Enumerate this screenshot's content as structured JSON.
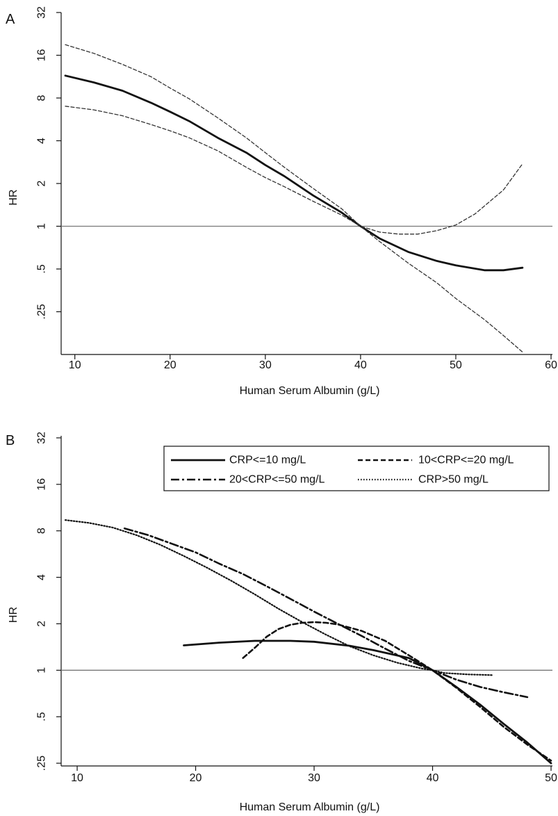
{
  "chart_data": [
    {
      "panel_label": "A",
      "type": "line",
      "xlabel": "Human Serum Albumin (g/L)",
      "ylabel": "HR",
      "xlim": [
        9,
        60
      ],
      "ylim": [
        0.125,
        32
      ],
      "y_scale": "log2",
      "x_ticks": [
        10,
        20,
        30,
        40,
        50,
        60
      ],
      "y_ticks": [
        {
          "value": 32,
          "label": "32"
        },
        {
          "value": 16,
          "label": "16"
        },
        {
          "value": 8,
          "label": "8"
        },
        {
          "value": 4,
          "label": "4"
        },
        {
          "value": 2,
          "label": "2"
        },
        {
          "value": 1,
          "label": "1"
        },
        {
          "value": 0.5,
          "label": ".5"
        },
        {
          "value": 0.25,
          "label": ".25"
        }
      ],
      "reference_line": 1,
      "grid": false,
      "series": [
        {
          "style": "solid",
          "role": "estimate",
          "x": [
            9,
            12,
            15,
            18,
            20,
            22,
            25,
            28,
            30,
            32,
            35,
            38,
            40,
            42,
            45,
            48,
            50,
            53,
            55,
            57
          ],
          "y": [
            11.5,
            10.3,
            9.0,
            7.4,
            6.4,
            5.5,
            4.2,
            3.3,
            2.7,
            2.25,
            1.65,
            1.25,
            1.0,
            0.82,
            0.66,
            0.57,
            0.53,
            0.49,
            0.49,
            0.51
          ]
        },
        {
          "style": "dashed",
          "role": "upper confidence limit",
          "x": [
            9,
            12,
            15,
            18,
            20,
            22,
            25,
            28,
            30,
            32,
            35,
            38,
            40,
            42,
            44,
            46,
            48,
            50,
            52,
            55,
            57
          ],
          "y": [
            19,
            16.5,
            13.8,
            11.3,
            9.4,
            7.9,
            5.8,
            4.2,
            3.3,
            2.6,
            1.85,
            1.33,
            1.0,
            0.91,
            0.88,
            0.88,
            0.93,
            1.02,
            1.22,
            1.8,
            2.75
          ]
        },
        {
          "style": "dashed",
          "role": "lower confidence limit",
          "x": [
            9,
            12,
            15,
            18,
            20,
            22,
            25,
            28,
            30,
            32,
            35,
            38,
            40,
            42,
            45,
            48,
            50,
            53,
            55,
            57
          ],
          "y": [
            7.0,
            6.6,
            6.0,
            5.2,
            4.7,
            4.2,
            3.4,
            2.6,
            2.2,
            1.9,
            1.5,
            1.2,
            1.0,
            0.78,
            0.55,
            0.4,
            0.31,
            0.22,
            0.17,
            0.13
          ]
        }
      ]
    },
    {
      "panel_label": "B",
      "type": "line",
      "xlabel": "Human Serum Albumin (g/L)",
      "ylabel": "HR",
      "xlim": [
        9,
        50
      ],
      "ylim": [
        0.25,
        32
      ],
      "y_scale": "log2",
      "x_ticks": [
        10,
        20,
        30,
        40,
        50
      ],
      "y_ticks": [
        {
          "value": 32,
          "label": "32"
        },
        {
          "value": 16,
          "label": "16"
        },
        {
          "value": 8,
          "label": "8"
        },
        {
          "value": 4,
          "label": "4"
        },
        {
          "value": 2,
          "label": "2"
        },
        {
          "value": 1,
          "label": "1"
        },
        {
          "value": 0.5,
          "label": ".5"
        },
        {
          "value": 0.25,
          "label": ".25"
        }
      ],
      "reference_line": 1,
      "grid": false,
      "legend_position": "top-right",
      "legend_columns": 2,
      "series": [
        {
          "name": "CRP<=10 mg/L",
          "style": "solid",
          "x": [
            19,
            22,
            25,
            28,
            30,
            33,
            35,
            38,
            40,
            42,
            44,
            46,
            48,
            50
          ],
          "y": [
            1.45,
            1.51,
            1.55,
            1.55,
            1.53,
            1.44,
            1.35,
            1.2,
            1.0,
            0.78,
            0.6,
            0.45,
            0.34,
            0.25
          ]
        },
        {
          "name": "10<CRP<=20 mg/L",
          "style": "dashed",
          "x": [
            24,
            25,
            26,
            27,
            28,
            29,
            30,
            31,
            32,
            34,
            36,
            38,
            40,
            42,
            44,
            46,
            48,
            50
          ],
          "y": [
            1.2,
            1.4,
            1.65,
            1.85,
            1.97,
            2.03,
            2.05,
            2.03,
            1.98,
            1.8,
            1.55,
            1.25,
            1.0,
            0.77,
            0.58,
            0.43,
            0.33,
            0.26
          ]
        },
        {
          "name": "20<CRP<=50 mg/L",
          "style": "dashdot",
          "x": [
            14,
            16,
            18,
            20,
            22,
            24,
            26,
            28,
            30,
            32,
            34,
            36,
            38,
            40,
            42,
            44,
            46,
            48
          ],
          "y": [
            8.3,
            7.5,
            6.6,
            5.8,
            4.9,
            4.2,
            3.5,
            2.9,
            2.4,
            2.0,
            1.67,
            1.38,
            1.15,
            1.0,
            0.87,
            0.78,
            0.72,
            0.67
          ]
        },
        {
          "name": "CRP>50 mg/L",
          "style": "dotted",
          "x": [
            9,
            11,
            13,
            15,
            17,
            19,
            21,
            23,
            25,
            27,
            29,
            31,
            33,
            35,
            37,
            39,
            40,
            41,
            43,
            45
          ],
          "y": [
            9.4,
            9.0,
            8.4,
            7.5,
            6.5,
            5.5,
            4.6,
            3.8,
            3.1,
            2.5,
            2.05,
            1.7,
            1.43,
            1.25,
            1.12,
            1.03,
            1.0,
            0.96,
            0.94,
            0.93
          ]
        }
      ]
    }
  ]
}
